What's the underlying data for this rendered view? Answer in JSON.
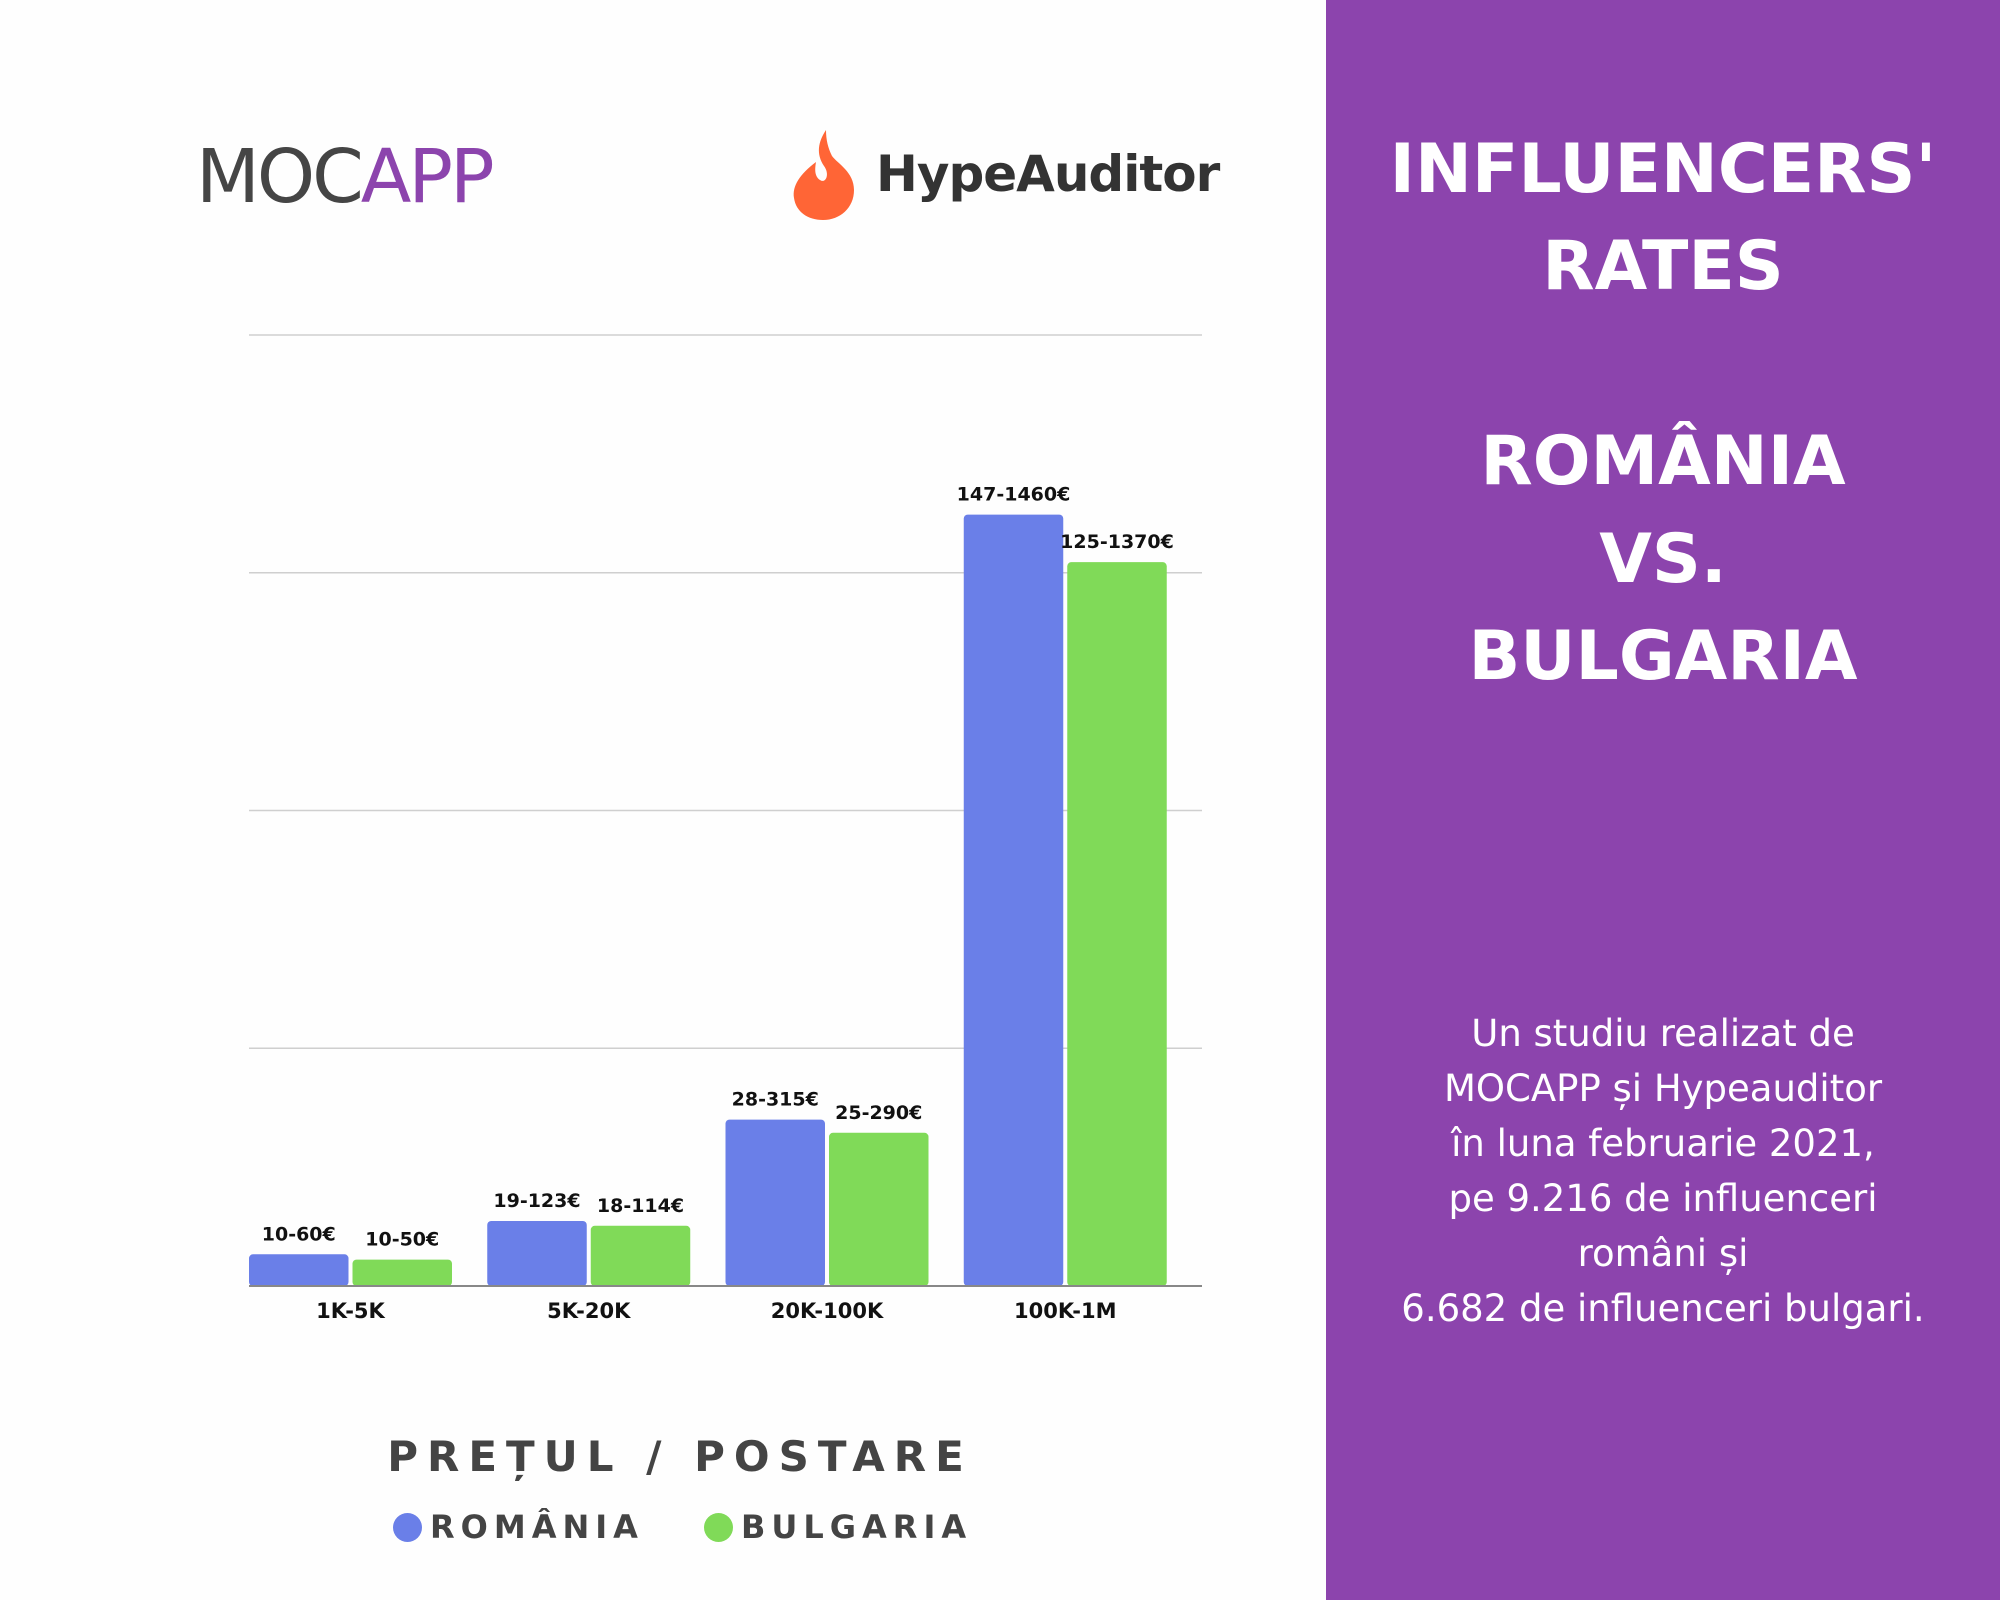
{
  "logos": {
    "mocapp_left": "MOC",
    "mocapp_right": "APP",
    "hypeauditor": "HypeAuditor"
  },
  "panel": {
    "title_lines": [
      "INFLUENCERS'",
      "RATES",
      "ROMÂNIA",
      "VS.",
      "BULGARIA"
    ],
    "description_lines": [
      "Un studiu realizat de",
      "MOCAPP și Hypeauditor",
      "în luna februarie 2021,",
      "pe 9.216 de influenceri",
      "români și",
      "6.682 de influenceri bulgari."
    ]
  },
  "colors": {
    "romania": "#6a7fe8",
    "bulgaria": "#80da58",
    "panel": "#8c44ad"
  },
  "chart_data": {
    "type": "bar",
    "title": "",
    "xlabel": "PREȚUL / POSTARE",
    "ylabel": "",
    "ylim": [
      0,
      1800
    ],
    "grid": true,
    "legend_position": "bottom",
    "categories": [
      "1K-5K",
      "5K-20K",
      "20K-100K",
      "100K-1M"
    ],
    "series": [
      {
        "name": "ROMÂNIA",
        "min": [
          10,
          19,
          28,
          147
        ],
        "values": [
          60,
          123,
          315,
          1460
        ],
        "labels": [
          "10-60€",
          "19-123€",
          "28-315€",
          "147-1460€"
        ]
      },
      {
        "name": "BULGARIA",
        "min": [
          10,
          18,
          25,
          125
        ],
        "values": [
          50,
          114,
          290,
          1370
        ],
        "labels": [
          "10-50€",
          "18-114€",
          "25-290€",
          "125-1370€"
        ]
      }
    ]
  }
}
